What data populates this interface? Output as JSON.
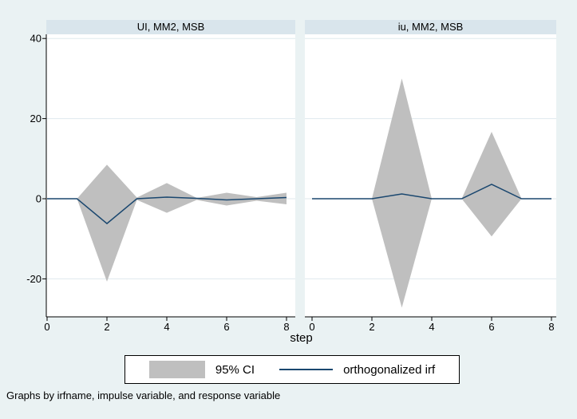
{
  "window": {
    "background": "#eaf2f3"
  },
  "colors": {
    "plot_background": "#ffffff",
    "title_band": "#d9e5ec",
    "grid": "#dfeaee",
    "ci_fill": "#bfbfbf",
    "irf_line": "#1a476f",
    "axis": "#000000",
    "text": "#000000"
  },
  "xlabel": "step",
  "footer_note": "Graphs by irfname, impulse variable, and response variable",
  "legend": {
    "ci_label": "95% CI",
    "irf_label": "orthogonalized irf"
  },
  "axes": {
    "yticks": [
      40,
      20,
      0,
      -20
    ],
    "xticks": [
      0,
      2,
      4,
      6,
      8
    ]
  },
  "chart_data": [
    {
      "type": "area",
      "title": "UI, MM2, MSB",
      "x": [
        0,
        1,
        2,
        3,
        4,
        5,
        6,
        7,
        8
      ],
      "series": [
        {
          "name": "95% CI upper",
          "values": [
            0,
            0,
            8.5,
            0.3,
            3.9,
            0.2,
            1.5,
            0.4,
            1.5
          ]
        },
        {
          "name": "95% CI lower",
          "values": [
            0,
            0,
            -20.7,
            -0.3,
            -3.5,
            -0.3,
            -1.7,
            -0.5,
            -1.4
          ]
        },
        {
          "name": "orthogonalized irf",
          "values": [
            0,
            0,
            -6.2,
            0,
            0.4,
            0.1,
            -0.3,
            0,
            0.3
          ]
        }
      ],
      "xlabel": "step",
      "ylabel": "",
      "xlim": [
        0,
        8
      ],
      "ylim": [
        -30,
        41
      ],
      "grid": true,
      "legend_position": "bottom"
    },
    {
      "type": "area",
      "title": "iu, MM2, MSB",
      "x": [
        0,
        1,
        2,
        3,
        4,
        5,
        6,
        7,
        8
      ],
      "series": [
        {
          "name": "95% CI upper",
          "values": [
            0,
            0,
            0,
            30,
            0,
            0,
            16.7,
            0,
            0
          ]
        },
        {
          "name": "95% CI lower",
          "values": [
            0,
            0,
            0,
            -27.2,
            0,
            0,
            -9.4,
            0,
            0
          ]
        },
        {
          "name": "orthogonalized irf",
          "values": [
            0,
            0,
            0,
            1.2,
            0,
            0,
            3.6,
            0,
            0
          ]
        }
      ],
      "xlabel": "step",
      "ylabel": "",
      "xlim": [
        0,
        8
      ],
      "ylim": [
        -30,
        41
      ],
      "grid": true,
      "legend_position": "bottom"
    }
  ]
}
